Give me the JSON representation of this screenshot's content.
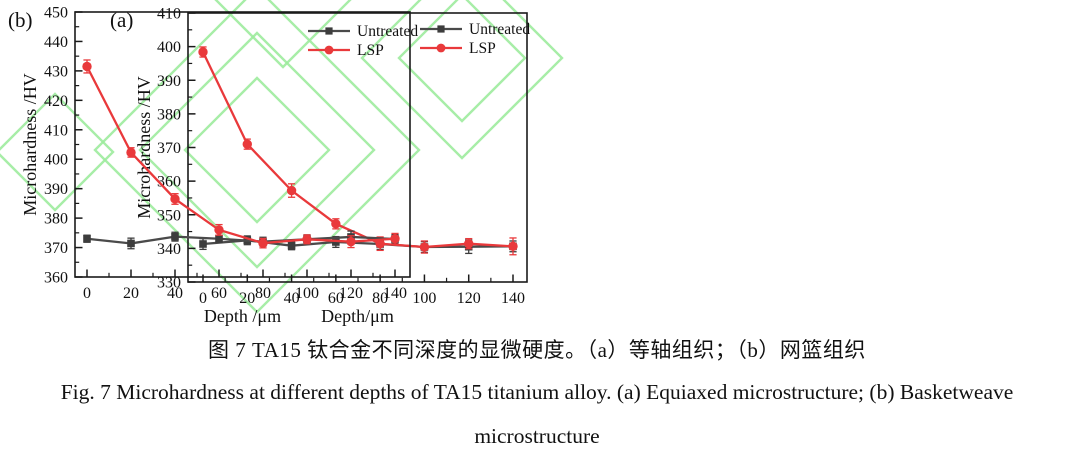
{
  "figure": {
    "caption_zh": "图 7 TA15 钛合金不同深度的显微硬度。（a）等轴组织；（b）网篮组织",
    "caption_en": "Fig. 7 Microhardness at different depths of TA15 titanium alloy. (a) Equiaxed microstructure; (b) Basketweave",
    "caption_en2": "microstructure"
  },
  "colors": {
    "untreated": "#3d3d3d",
    "untreated_line": "#4a4a4a",
    "lsp": "#e9393b",
    "watermark_green": "#9deb9d",
    "axis": "#1a1a1a"
  },
  "chart_data": [
    {
      "type": "line",
      "panel_label": "(a)",
      "xlabel": "Depth/μm",
      "ylabel": "Microhardness /HV",
      "x": [
        0,
        20,
        40,
        60,
        80,
        100,
        120,
        140
      ],
      "ylim": [
        330,
        410
      ],
      "ytick_step": 10,
      "xtick_step": 20,
      "grid": false,
      "legend_position": "top-right",
      "series": [
        {
          "name": "Untreated",
          "marker": "square",
          "color": "#3d3d3d",
          "values": [
            341.3,
            342.4,
            340.8,
            341.9,
            341.3,
            340.4,
            340.5,
            340.6
          ],
          "errors": [
            1.6,
            1.3,
            1.2,
            1.6,
            1.6,
            1.6,
            2.0,
            1.6
          ]
        },
        {
          "name": "LSP",
          "marker": "circle",
          "color": "#e9393b",
          "values": [
            398.4,
            371.0,
            357.2,
            347.3,
            341.4,
            340.4,
            341.4,
            340.6
          ],
          "errors": [
            1.5,
            1.5,
            2.0,
            1.5,
            2.0,
            1.8,
            1.5,
            2.5
          ]
        }
      ]
    },
    {
      "type": "line",
      "panel_label": "(b)",
      "xlabel": "Depth /μm",
      "ylabel": "Microhardness /HV",
      "x": [
        0,
        20,
        40,
        60,
        80,
        100,
        120,
        140
      ],
      "ylim": [
        360,
        450
      ],
      "ytick_step": 10,
      "xtick_step": 20,
      "grid": false,
      "legend_position": "top-right",
      "series": [
        {
          "name": "Untreated",
          "marker": "square",
          "color": "#3d3d3d",
          "values": [
            373.0,
            371.4,
            373.7,
            373.0,
            372.0,
            372.8,
            373.6,
            372.9
          ],
          "errors": [
            1.2,
            1.8,
            1.5,
            1.2,
            1.5,
            1.5,
            2.0,
            1.5
          ]
        },
        {
          "name": "LSP",
          "marker": "circle",
          "color": "#e9393b",
          "values": [
            431.5,
            402.3,
            386.5,
            376.0,
            371.5,
            372.8,
            372.0,
            373.0
          ],
          "errors": [
            2.2,
            1.6,
            1.8,
            1.8,
            1.6,
            1.5,
            2.0,
            1.8
          ]
        }
      ]
    }
  ]
}
